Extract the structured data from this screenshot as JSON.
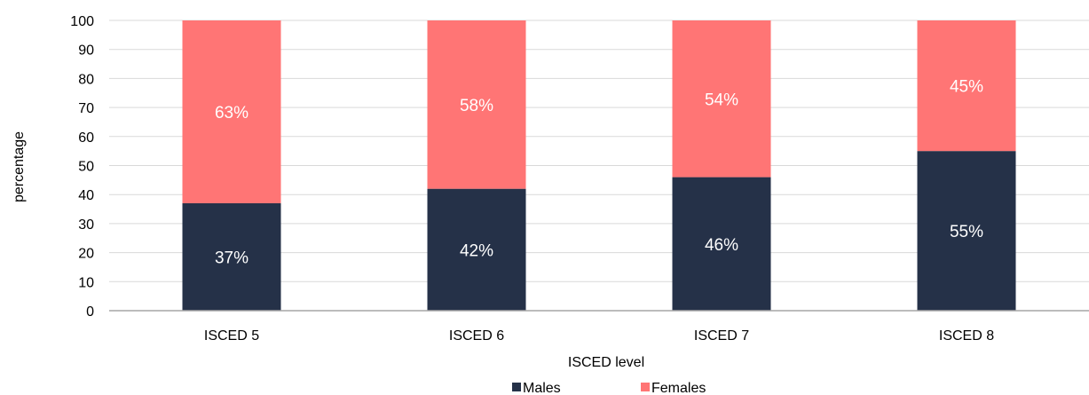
{
  "chart_data": {
    "type": "bar",
    "stacked": true,
    "title": "",
    "xlabel": "ISCED level",
    "ylabel": "percentage",
    "ylim": [
      0,
      100
    ],
    "yticks": [
      0,
      10,
      20,
      30,
      40,
      50,
      60,
      70,
      80,
      90,
      100
    ],
    "categories": [
      "ISCED 5",
      "ISCED 6",
      "ISCED 7",
      "ISCED 8"
    ],
    "series": [
      {
        "name": "Males",
        "values": [
          37,
          42,
          46,
          55
        ],
        "labels": [
          "37%",
          "42%",
          "46%",
          "55%"
        ],
        "color": "#253148"
      },
      {
        "name": "Females",
        "values": [
          63,
          58,
          54,
          45
        ],
        "labels": [
          "63%",
          "58%",
          "54%",
          "45%"
        ],
        "color": "#FF7575"
      }
    ],
    "grid": true,
    "gridColor": "#d9d9d9",
    "legend": "bottom"
  }
}
